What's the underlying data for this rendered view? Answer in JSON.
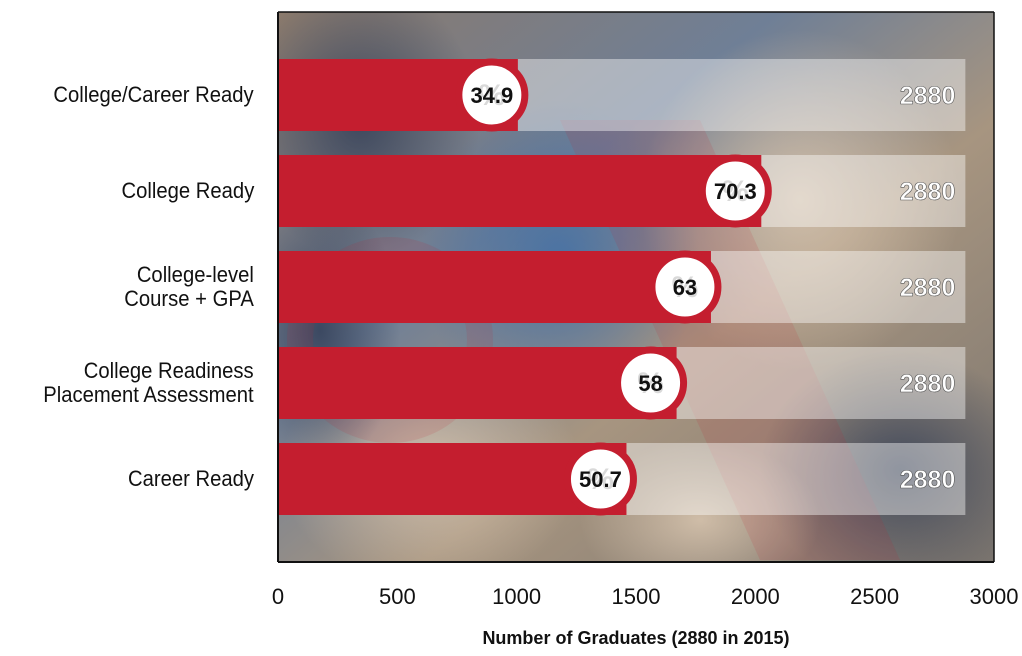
{
  "chart_data": {
    "type": "bar",
    "orientation": "horizontal",
    "categories": [
      [
        "College/Career Ready"
      ],
      [
        "College Ready"
      ],
      [
        "College-level",
        "Course + GPA"
      ],
      [
        "College Readiness",
        "Placement Assessment"
      ],
      [
        "Career Ready"
      ]
    ],
    "values": [
      1005,
      2025,
      1814,
      1670,
      1460
    ],
    "percent_labels": [
      "34.9",
      "70.3",
      "63",
      "58",
      "50.7"
    ],
    "total": 2880,
    "total_labels": [
      "2880",
      "2880",
      "2880",
      "2880",
      "2880"
    ],
    "xticks": [
      "0",
      "500",
      "1000",
      "1500",
      "2000",
      "2500",
      "3000"
    ],
    "xlim": [
      0,
      3000
    ],
    "xlabel": "Number of Graduates (2880 in 2015)",
    "ylabel": "",
    "title": "",
    "grid": false,
    "colors": {
      "bar": "#c41e2f",
      "total_bar": "#ffffff",
      "circle_fill": "#ffffff",
      "circle_stroke": "#c41e2f",
      "axis": "#111111"
    }
  }
}
